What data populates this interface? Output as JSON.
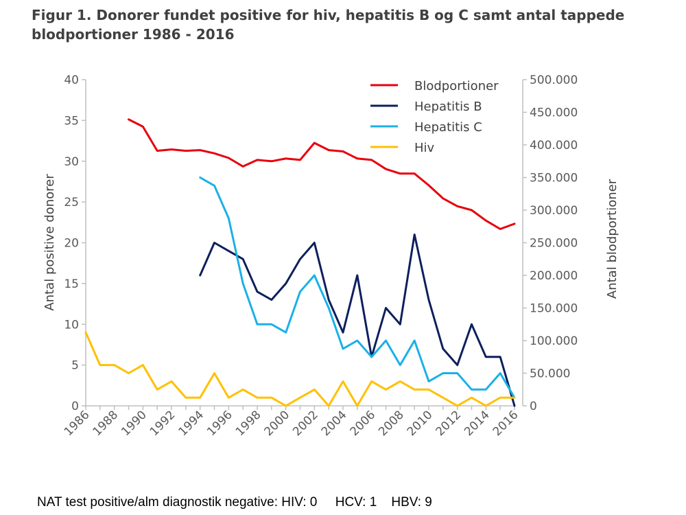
{
  "title": "Figur 1. Donorer fundet positive for hiv, hepatitis B og C samt antal tappede blodportioner 1986 - 2016",
  "footnote": "NAT test positive/alm diagnostik negative: HIV: 0     HCV: 1    HBV: 9",
  "chart_data": {
    "type": "line",
    "title": "Figur 1. Donorer fundet positive for hiv, hepatitis B og C samt antal tappede blodportioner 1986 - 2016",
    "ylabel_left": "Antal positive donorer",
    "ylabel_right": "Antal blodportioner",
    "ylim_left": [
      0,
      40
    ],
    "ylim_right": [
      0,
      500000
    ],
    "xlim": [
      1986,
      2016
    ],
    "x_tick_labels": [
      "1986",
      "1988",
      "1990",
      "1992",
      "1994",
      "1996",
      "1998",
      "2000",
      "2002",
      "2004",
      "2006",
      "2008",
      "2010",
      "2012",
      "2014",
      "2016"
    ],
    "y_left_tick_labels": [
      "0",
      "5",
      "10",
      "15",
      "20",
      "25",
      "30",
      "35",
      "40"
    ],
    "y_right_tick_labels": [
      "0",
      "50.000",
      "100.000",
      "150.000",
      "200.000",
      "250.000",
      "300.000",
      "350.000",
      "400.000",
      "450.000",
      "500.000"
    ],
    "grid": false,
    "legend_position": "top-right",
    "series": [
      {
        "name": "Blodportioner",
        "axis": "right",
        "color": "#e8000b",
        "x": [
          1989,
          1990,
          1991,
          1992,
          1993,
          1994,
          1995,
          1996,
          1997,
          1998,
          1999,
          2000,
          2001,
          2002,
          2003,
          2004,
          2005,
          2006,
          2007,
          2008,
          2009,
          2010,
          2011,
          2012,
          2013,
          2014,
          2015,
          2016
        ],
        "values": [
          439000,
          428000,
          391000,
          393000,
          391000,
          392000,
          387000,
          380000,
          367000,
          377000,
          375000,
          379000,
          377000,
          403000,
          392000,
          390000,
          379000,
          377000,
          363000,
          356000,
          356000,
          338000,
          318000,
          306000,
          300000,
          284000,
          271000,
          279000
        ]
      },
      {
        "name": "Hepatitis B",
        "axis": "left",
        "color": "#0d1f5c",
        "x": [
          1994,
          1995,
          1996,
          1997,
          1998,
          1999,
          2000,
          2001,
          2002,
          2003,
          2004,
          2005,
          2006,
          2007,
          2008,
          2009,
          2010,
          2011,
          2012,
          2013,
          2014,
          2015,
          2016
        ],
        "values": [
          16,
          20,
          19,
          18,
          14,
          13,
          15,
          18,
          20,
          13,
          9,
          16,
          6,
          12,
          10,
          21,
          13,
          7,
          5,
          10,
          6,
          6,
          0
        ]
      },
      {
        "name": "Hepatitis C",
        "axis": "left",
        "color": "#1ab0e8",
        "x": [
          1994,
          1995,
          1996,
          1997,
          1998,
          1999,
          2000,
          2001,
          2002,
          2003,
          2004,
          2005,
          2006,
          2007,
          2008,
          2009,
          2010,
          2011,
          2012,
          2013,
          2014,
          2015,
          2016
        ],
        "values": [
          28,
          27,
          23,
          15,
          10,
          10,
          9,
          14,
          16,
          12,
          7,
          8,
          6,
          8,
          5,
          8,
          3,
          4,
          4,
          2,
          2,
          4,
          1
        ]
      },
      {
        "name": "Hiv",
        "axis": "left",
        "color": "#ffc000",
        "x": [
          1986,
          1987,
          1988,
          1989,
          1990,
          1991,
          1992,
          1993,
          1994,
          1995,
          1996,
          1997,
          1998,
          1999,
          2000,
          2001,
          2002,
          2003,
          2004,
          2005,
          2006,
          2007,
          2008,
          2009,
          2010,
          2011,
          2012,
          2013,
          2014,
          2015,
          2016
        ],
        "values": [
          9,
          5,
          5,
          4,
          5,
          2,
          3,
          1,
          1,
          4,
          1,
          2,
          1,
          1,
          0,
          1,
          2,
          0,
          3,
          0,
          3,
          2,
          3,
          2,
          2,
          1,
          0,
          1,
          0,
          1,
          1
        ]
      }
    ]
  }
}
